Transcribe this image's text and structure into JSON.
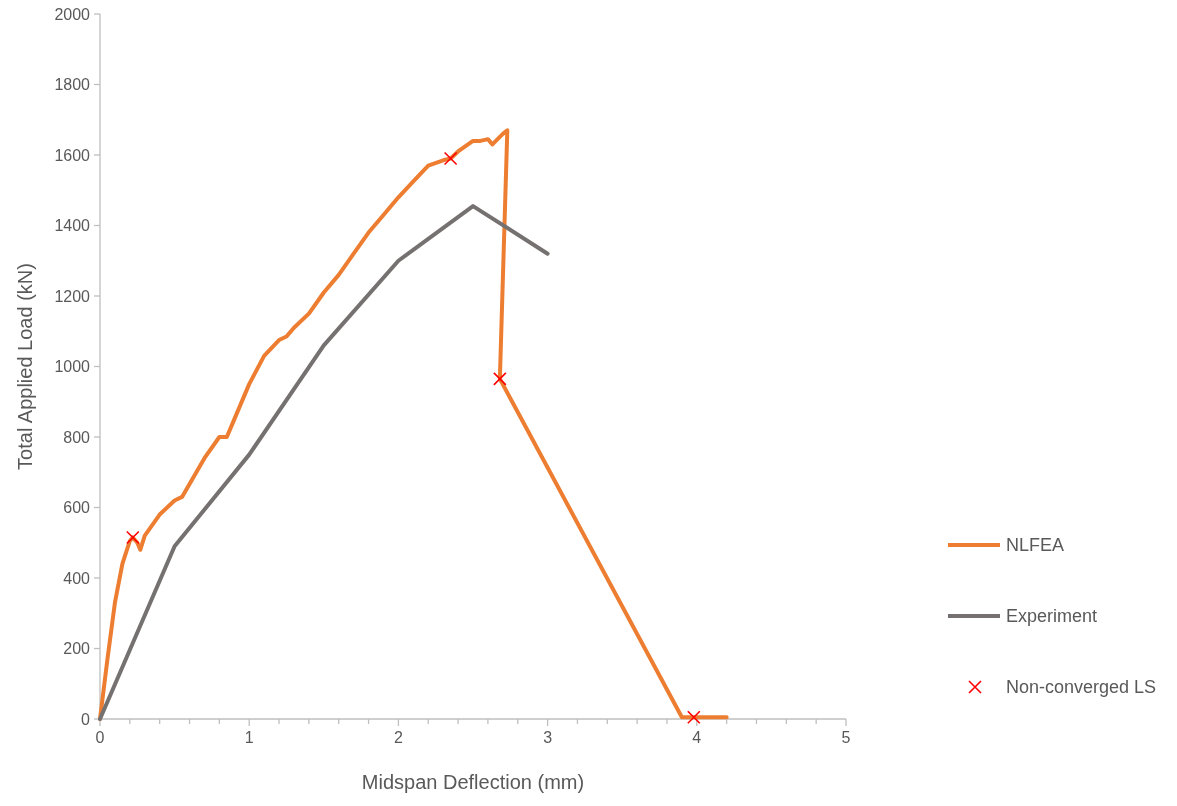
{
  "chart_data": {
    "type": "line",
    "xlabel": "Midspan Deflection (mm)",
    "ylabel": "Total Applied Load (kN)",
    "xlim": [
      0,
      5
    ],
    "xticks": [
      0,
      {
        "value": 0.2,
        "label": null
      },
      {
        "value": 0.4,
        "label": null
      },
      {
        "value": 0.6,
        "label": null
      },
      {
        "value": 0.8,
        "label": null
      },
      1,
      {
        "value": 1.2,
        "label": null
      },
      {
        "value": 1.4,
        "label": null
      },
      {
        "value": 1.6,
        "label": null
      },
      {
        "value": 1.8,
        "label": null
      },
      2,
      {
        "value": 2.2,
        "label": null
      },
      {
        "value": 2.4,
        "label": null
      },
      {
        "value": 2.6,
        "label": null
      },
      {
        "value": 2.8,
        "label": null
      },
      3,
      {
        "value": 3.2,
        "label": null
      },
      {
        "value": 3.4,
        "label": null
      },
      {
        "value": 3.6,
        "label": null
      },
      {
        "value": 3.8,
        "label": null
      },
      4,
      {
        "value": 4.2,
        "label": null
      },
      {
        "value": 4.4,
        "label": null
      },
      {
        "value": 4.6,
        "label": null
      },
      {
        "value": 4.8,
        "label": null
      },
      5
    ],
    "ylim": [
      0,
      2000
    ],
    "yticks": [
      0,
      200,
      400,
      600,
      800,
      1000,
      1200,
      1400,
      1600,
      1800,
      2000
    ],
    "grid": false,
    "legend": "right",
    "series": [
      {
        "name": "NLFEA",
        "color": "#ed7d31",
        "line_style": "solid",
        "x": [
          0,
          0.05,
          0.1,
          0.15,
          0.2,
          0.22,
          0.25,
          0.27,
          0.3,
          0.4,
          0.5,
          0.55,
          0.7,
          0.8,
          0.85,
          0.9,
          1.0,
          1.1,
          1.2,
          1.25,
          1.3,
          1.4,
          1.5,
          1.6,
          1.7,
          1.8,
          1.9,
          2.0,
          2.1,
          2.2,
          2.3,
          2.35,
          2.4,
          2.5,
          2.55,
          2.6,
          2.63,
          2.7,
          2.73,
          2.68,
          3.9,
          4.2
        ],
        "values": [
          0,
          170,
          330,
          440,
          505,
          515,
          500,
          480,
          520,
          580,
          620,
          630,
          740,
          800,
          800,
          850,
          950,
          1030,
          1075,
          1085,
          1110,
          1150,
          1210,
          1260,
          1320,
          1380,
          1430,
          1480,
          1525,
          1570,
          1585,
          1590,
          1610,
          1640,
          1640,
          1645,
          1630,
          1660,
          1670,
          965,
          5,
          5
        ]
      },
      {
        "name": "Experiment",
        "color": "#767171",
        "line_style": "solid",
        "x": [
          0,
          0.5,
          1,
          1.5,
          2,
          2.5,
          3
        ],
        "values": [
          0,
          490,
          750,
          1060,
          1300,
          1455,
          1320
        ]
      },
      {
        "name": "Non-converged LS",
        "color": "#ff0000",
        "type": "scatter",
        "marker": "cross",
        "x": [
          0.22,
          2.35,
          2.68,
          3.98
        ],
        "values": [
          515,
          1590,
          965,
          5
        ]
      }
    ]
  }
}
